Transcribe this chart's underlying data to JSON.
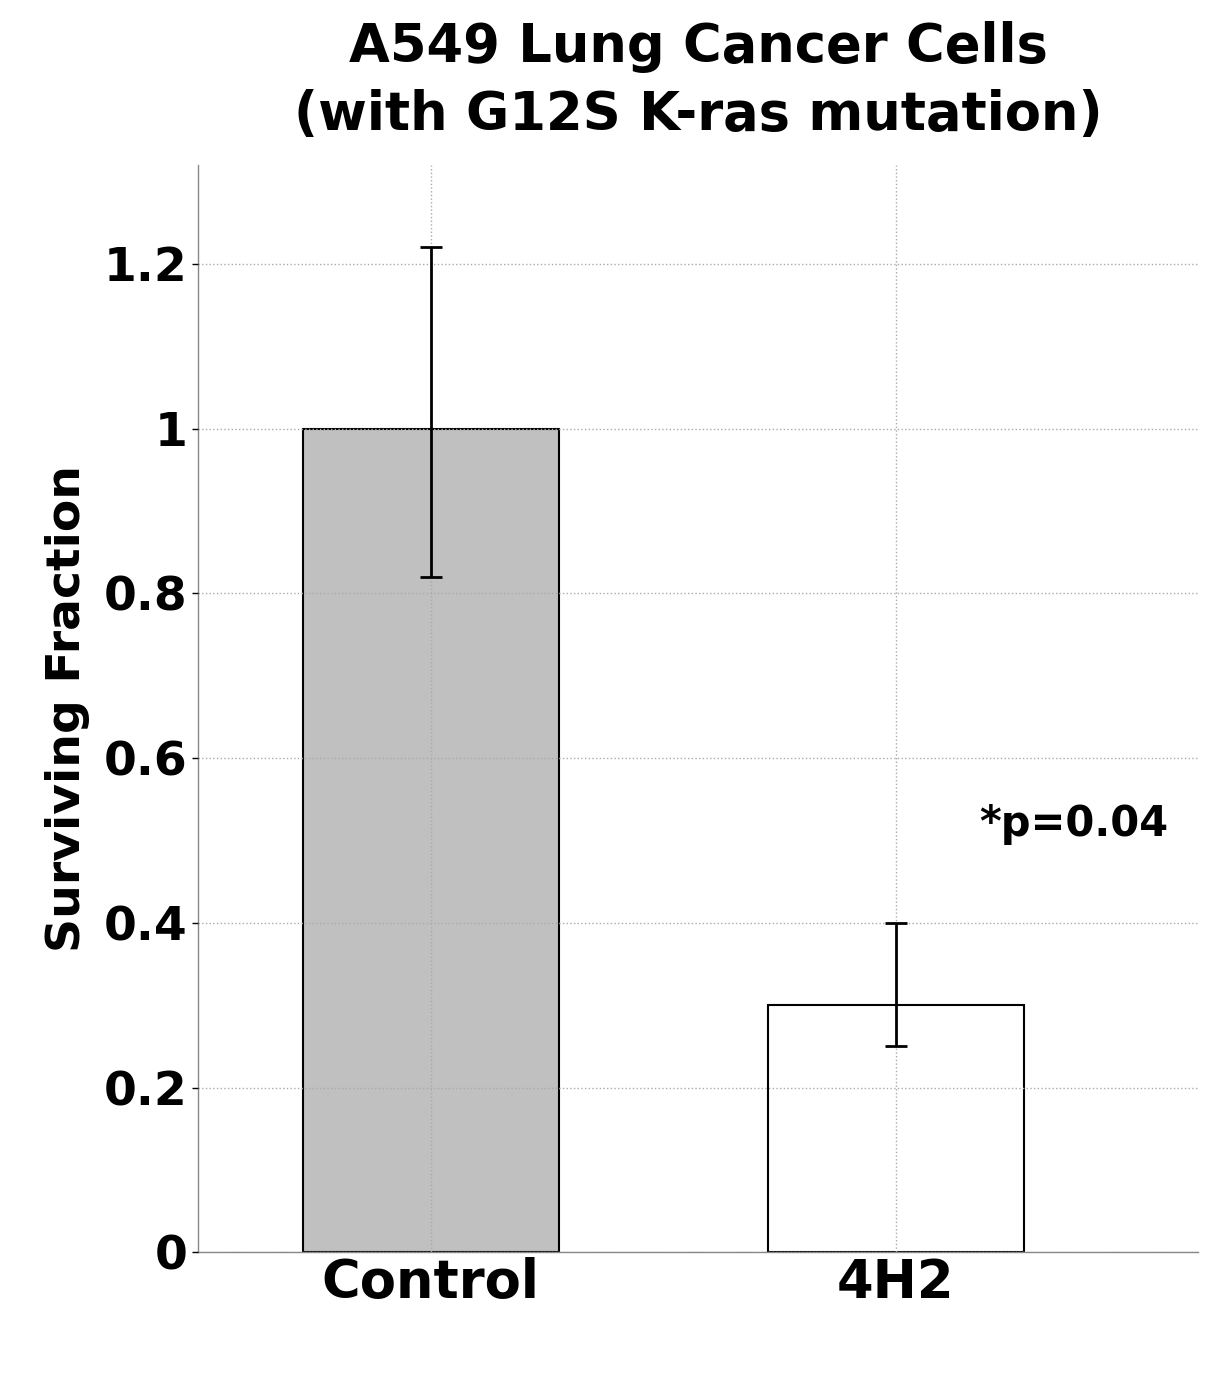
{
  "title_line1": "A549 Lung Cancer Cells",
  "title_line2": "(with G12S K-ras mutation)",
  "categories": [
    "Control",
    "4H2"
  ],
  "values": [
    1.0,
    0.3
  ],
  "errors_upper": [
    0.22,
    0.1
  ],
  "errors_lower": [
    0.18,
    0.05
  ],
  "bar_colors": [
    "#c0c0c0",
    "#ffffff"
  ],
  "bar_edgecolors": [
    "#000000",
    "#000000"
  ],
  "ylabel": "Surviving Fraction",
  "ylim": [
    0,
    1.32
  ],
  "yticks": [
    0,
    0.2,
    0.4,
    0.6,
    0.8,
    1.0,
    1.2
  ],
  "ytick_labels": [
    "0",
    "0.2",
    "0.4",
    "0.6",
    "0.8",
    "1",
    "1.2"
  ],
  "annotation_text": "*p=0.04",
  "title_fontsize": 38,
  "ylabel_fontsize": 34,
  "tick_fontsize": 34,
  "xtick_fontsize": 38,
  "annotation_fontsize": 30,
  "bar_width": 0.55,
  "background_color": "#ffffff",
  "grid_color": "#aaaaaa",
  "grid_style": ":",
  "bar_linewidth": 1.5,
  "error_linewidth": 2.0,
  "capsize": 8
}
